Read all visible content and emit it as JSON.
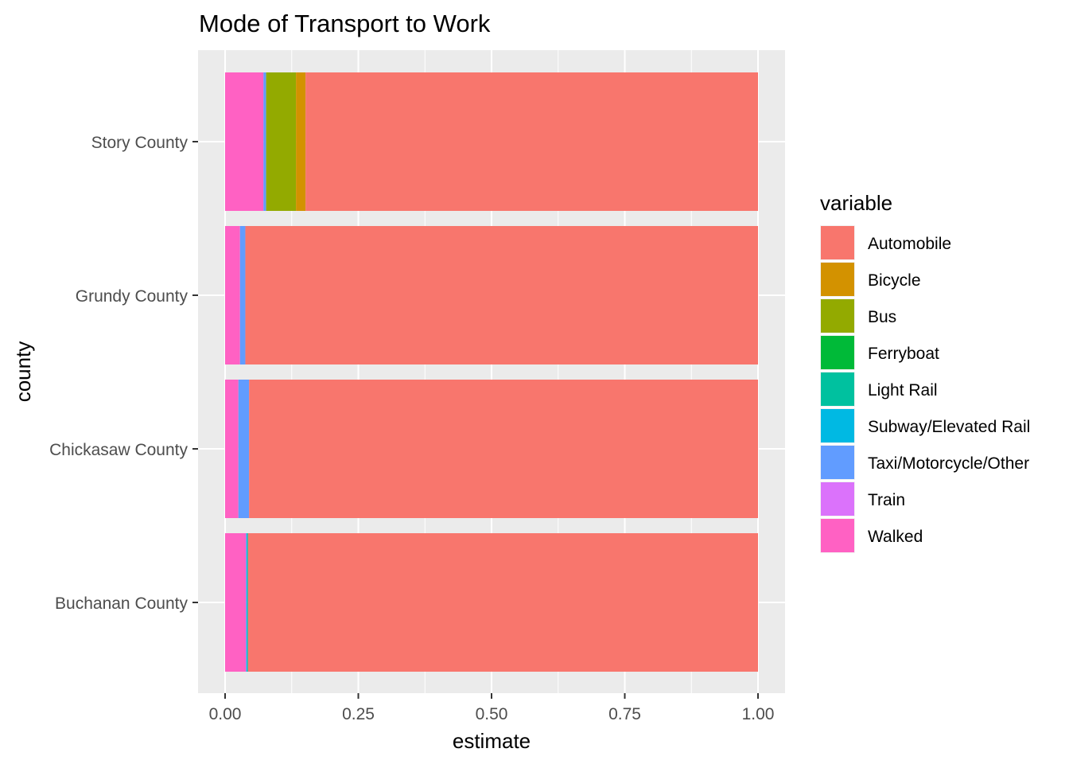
{
  "chart_data": {
    "type": "bar",
    "orientation": "horizontal",
    "stacked": true,
    "title": "Mode of Transport to Work",
    "xlabel": "estimate",
    "ylabel": "county",
    "xlim": [
      0,
      1
    ],
    "x_ticks": [
      "0.00",
      "0.25",
      "0.50",
      "0.75",
      "1.00"
    ],
    "x_tick_values": [
      0,
      0.25,
      0.5,
      0.75,
      1.0
    ],
    "grid": true,
    "categories": [
      "Story County",
      "Grundy County",
      "Chickasaw County",
      "Buchanan County"
    ],
    "legend_title": "variable",
    "legend_position": "right",
    "series": [
      {
        "name": "Automobile",
        "color": "#F8766D",
        "values": [
          0.849,
          0.962,
          0.955,
          0.957
        ]
      },
      {
        "name": "Bicycle",
        "color": "#D39200",
        "values": [
          0.018,
          0.0,
          0.0,
          0.0
        ]
      },
      {
        "name": "Bus",
        "color": "#93AA00",
        "values": [
          0.056,
          0.0,
          0.0,
          0.0
        ]
      },
      {
        "name": "Ferryboat",
        "color": "#00BA38",
        "values": [
          0.0,
          0.0,
          0.0,
          0.0
        ]
      },
      {
        "name": "Light Rail",
        "color": "#00C19F",
        "values": [
          0.0,
          0.0,
          0.0,
          0.002
        ]
      },
      {
        "name": "Subway/Elevated Rail",
        "color": "#00B9E3",
        "values": [
          0.0,
          0.0,
          0.0,
          0.0
        ]
      },
      {
        "name": "Taxi/Motorcycle/Other",
        "color": "#619CFF",
        "values": [
          0.005,
          0.01,
          0.02,
          0.002
        ]
      },
      {
        "name": "Train",
        "color": "#DB72FB",
        "values": [
          0.0,
          0.0,
          0.0,
          0.0
        ]
      },
      {
        "name": "Walked",
        "color": "#FF61C3",
        "values": [
          0.072,
          0.028,
          0.025,
          0.039
        ]
      }
    ]
  }
}
